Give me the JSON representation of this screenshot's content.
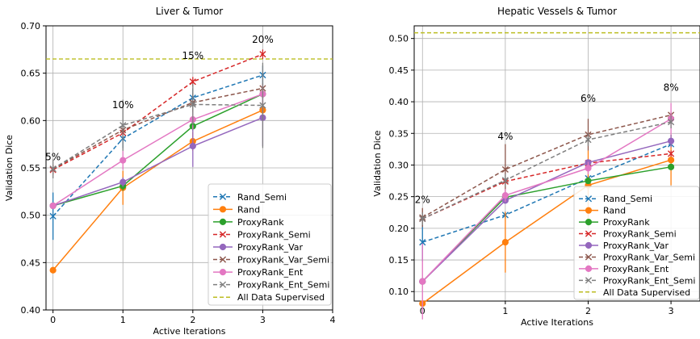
{
  "chart_data": [
    {
      "type": "line",
      "title": "Liver & Tumor",
      "xlabel": "Active Iterations",
      "ylabel": "Validation Dice",
      "xlim": [
        -0.1,
        4
      ],
      "ylim": [
        0.4,
        0.7
      ],
      "xticks": [
        0,
        1,
        2,
        3,
        4
      ],
      "yticks": [
        0.4,
        0.45,
        0.5,
        0.55,
        0.6,
        0.65,
        0.7
      ],
      "ytick_labels": [
        "0.40",
        "0.45",
        "0.50",
        "0.55",
        "0.60",
        "0.65",
        "0.70"
      ],
      "grid": true,
      "legend_position": "lower-right",
      "x": [
        0,
        1,
        2,
        3
      ],
      "series": [
        {
          "name": "Rand_Semi",
          "color": "#1f77b4",
          "dash": "dashed",
          "marker": "x",
          "values": [
            0.499,
            0.581,
            0.624,
            0.648
          ],
          "err": [
            0.025,
            0.01,
            0.01,
            0.01
          ]
        },
        {
          "name": "Rand",
          "color": "#ff7f0e",
          "dash": "solid",
          "marker": "o",
          "values": [
            0.442,
            0.529,
            0.578,
            0.611
          ],
          "err": [
            0,
            0.018,
            0.01,
            0.01
          ]
        },
        {
          "name": "ProxyRank",
          "color": "#2ca02c",
          "dash": "solid",
          "marker": "o",
          "values": [
            0.51,
            0.531,
            0.594,
            0.628
          ],
          "err": [
            0,
            0.005,
            0.005,
            0.005
          ]
        },
        {
          "name": "ProxyRank_Semi",
          "color": "#d62728",
          "dash": "dashed",
          "marker": "x",
          "values": [
            0.548,
            0.587,
            0.641,
            0.67
          ],
          "err": [
            0.005,
            0.005,
            0.005,
            0.005
          ]
        },
        {
          "name": "ProxyRank_Var",
          "color": "#9467bd",
          "dash": "solid",
          "marker": "o",
          "values": [
            0.51,
            0.535,
            0.573,
            0.603
          ],
          "err": [
            0,
            0.005,
            0.022,
            0.03
          ]
        },
        {
          "name": "ProxyRank_Var_Semi",
          "color": "#8c564b",
          "dash": "dashed",
          "marker": "x",
          "values": [
            0.549,
            0.59,
            0.619,
            0.634
          ],
          "err": [
            0,
            0.005,
            0.01,
            0.005
          ]
        },
        {
          "name": "ProxyRank_Ent",
          "color": "#e377c2",
          "dash": "solid",
          "marker": "o",
          "values": [
            0.51,
            0.558,
            0.601,
            0.628
          ],
          "err": [
            0,
            0.01,
            0.01,
            0.01
          ]
        },
        {
          "name": "ProxyRank_Ent_Semi",
          "color": "#7f7f7f",
          "dash": "dashed",
          "marker": "x",
          "values": [
            0.549,
            0.595,
            0.617,
            0.616
          ],
          "err": [
            0.01,
            0.027,
            0.022,
            0.045
          ]
        }
      ],
      "reference_line": {
        "name": "All Data Supervised",
        "color": "#bcbd22",
        "dash": "dashed",
        "value": 0.665
      },
      "annotations": [
        {
          "text": "5%",
          "x": 0,
          "y": 0.558
        },
        {
          "text": "10%",
          "x": 1,
          "y": 0.613
        },
        {
          "text": "15%",
          "x": 2,
          "y": 0.665
        },
        {
          "text": "20%",
          "x": 3,
          "y": 0.682
        }
      ]
    },
    {
      "type": "line",
      "title": "Hepatic Vessels & Tumor",
      "xlabel": "Active Iterations",
      "ylabel": "Validation Dice",
      "xlim": [
        -0.1,
        3.35
      ],
      "ylim": [
        0.085,
        0.52
      ],
      "xticks": [
        0,
        1,
        2,
        3
      ],
      "yticks": [
        0.1,
        0.15,
        0.2,
        0.25,
        0.3,
        0.35,
        0.4,
        0.45,
        0.5
      ],
      "ytick_labels": [
        "0.10",
        "0.15",
        "0.20",
        "0.25",
        "0.30",
        "0.35",
        "0.40",
        "0.45",
        "0.50"
      ],
      "grid": true,
      "legend_position": "lower-right",
      "x": [
        0,
        1,
        2,
        3
      ],
      "series": [
        {
          "name": "Rand_Semi",
          "color": "#1f77b4",
          "dash": "dashed",
          "marker": "x",
          "values": [
            0.178,
            0.221,
            0.279,
            0.333
          ],
          "err": [
            0.03,
            0.005,
            0.005,
            0.005
          ]
        },
        {
          "name": "Rand",
          "color": "#ff7f0e",
          "dash": "solid",
          "marker": "o",
          "values": [
            0.081,
            0.178,
            0.268,
            0.308
          ],
          "err": [
            0,
            0.048,
            0.055,
            0.04
          ]
        },
        {
          "name": "ProxyRank",
          "color": "#2ca02c",
          "dash": "solid",
          "marker": "o",
          "values": [
            0.116,
            0.249,
            0.275,
            0.297
          ],
          "err": [
            0,
            0.005,
            0.005,
            0.005
          ]
        },
        {
          "name": "ProxyRank_Semi",
          "color": "#d62728",
          "dash": "dashed",
          "marker": "x",
          "values": [
            0.215,
            0.274,
            0.303,
            0.318
          ],
          "err": [
            0.005,
            0.005,
            0.005,
            0.005
          ]
        },
        {
          "name": "ProxyRank_Var",
          "color": "#9467bd",
          "dash": "solid",
          "marker": "o",
          "values": [
            0.116,
            0.244,
            0.304,
            0.338
          ],
          "err": [
            0,
            0.005,
            0.005,
            0.01
          ]
        },
        {
          "name": "ProxyRank_Var_Semi",
          "color": "#8c564b",
          "dash": "dashed",
          "marker": "x",
          "values": [
            0.217,
            0.293,
            0.348,
            0.379
          ],
          "err": [
            0.015,
            0.04,
            0.025,
            0.005
          ]
        },
        {
          "name": "ProxyRank_Ent",
          "color": "#e377c2",
          "dash": "solid",
          "marker": "o",
          "values": [
            0.116,
            0.252,
            0.295,
            0.373
          ],
          "err": [
            0.06,
            0.01,
            0.01,
            0.025
          ]
        },
        {
          "name": "ProxyRank_Ent_Semi",
          "color": "#7f7f7f",
          "dash": "dashed",
          "marker": "x",
          "values": [
            0.215,
            0.276,
            0.34,
            0.368
          ],
          "err": [
            0.01,
            0.01,
            0.01,
            0.01
          ]
        }
      ],
      "reference_line": {
        "name": "All Data Supervised",
        "color": "#bcbd22",
        "dash": "dashed",
        "value": 0.509
      },
      "annotations": [
        {
          "text": "2%",
          "x": 0,
          "y": 0.24
        },
        {
          "text": "4%",
          "x": 1,
          "y": 0.34
        },
        {
          "text": "6%",
          "x": 2,
          "y": 0.4
        },
        {
          "text": "8%",
          "x": 3,
          "y": 0.417
        }
      ]
    }
  ]
}
